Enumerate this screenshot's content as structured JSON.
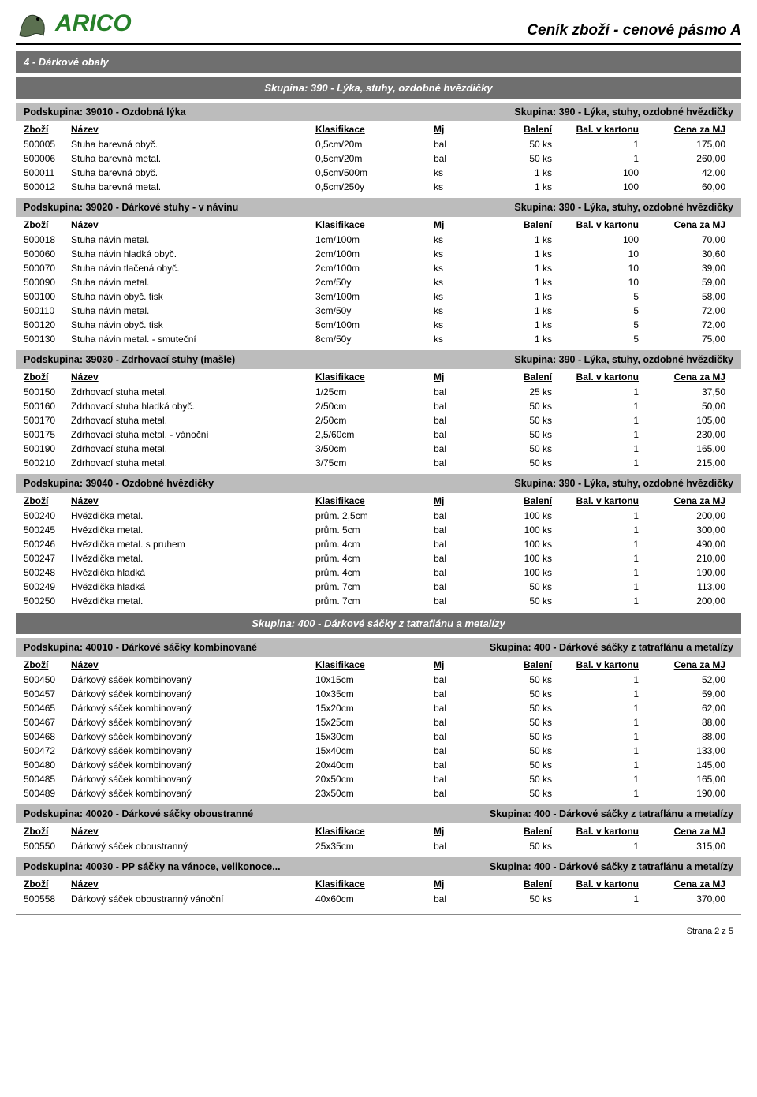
{
  "doc_title": "Ceník zboží - cenové pásmo  A",
  "logo": {
    "part1": "AR",
    "part2": "ICO"
  },
  "category_band_text": "4  -  Dárkové obaly",
  "group_band_390": "Skupina:   390  -  Lýka, stuhy, ozdobné hvězdičky",
  "group_band_400": "Skupina:   400  -  Dárkové sáčky z tatraflánu a metalízy",
  "skupina_suffix_390": "Skupina:   390  -  Lýka, stuhy, ozdobné hvězdičky",
  "skupina_suffix_400": "Skupina:   400  -  Dárkové sáčky z tatraflánu a metalízy",
  "col": {
    "zbozi": "Zboží",
    "nazev": "Název",
    "klas": "Klasifikace",
    "mj": "Mj",
    "bal": "Balení",
    "kart": "Bal. v kartonu",
    "cena": "Cena za MJ"
  },
  "sections": [
    {
      "podskupina": "Podskupina:   39010  -  Ozdobná lýka",
      "skupina_right": "Skupina:   390  -  Lýka, stuhy, ozdobné hvězdičky",
      "rows": [
        {
          "code": "500005",
          "name": "Stuha barevná obyč.",
          "klas": "0,5cm/20m",
          "mj": "bal",
          "bal": "50 ks",
          "kart": "1",
          "cena": "175,00"
        },
        {
          "code": "500006",
          "name": "Stuha barevná metal.",
          "klas": "0,5cm/20m",
          "mj": "bal",
          "bal": "50 ks",
          "kart": "1",
          "cena": "260,00"
        },
        {
          "code": "500011",
          "name": "Stuha barevná obyč.",
          "klas": "0,5cm/500m",
          "mj": "ks",
          "bal": "1 ks",
          "kart": "100",
          "cena": "42,00"
        },
        {
          "code": "500012",
          "name": "Stuha barevná metal.",
          "klas": "0,5cm/250y",
          "mj": "ks",
          "bal": "1 ks",
          "kart": "100",
          "cena": "60,00"
        }
      ]
    },
    {
      "podskupina": "Podskupina:   39020  -  Dárkové stuhy - v návinu",
      "skupina_right": "Skupina:   390  -  Lýka, stuhy, ozdobné hvězdičky",
      "rows": [
        {
          "code": "500018",
          "name": "Stuha návin metal.",
          "klas": "1cm/100m",
          "mj": "ks",
          "bal": "1 ks",
          "kart": "100",
          "cena": "70,00"
        },
        {
          "code": "500060",
          "name": "Stuha návin hladká obyč.",
          "klas": "2cm/100m",
          "mj": "ks",
          "bal": "1 ks",
          "kart": "10",
          "cena": "30,60"
        },
        {
          "code": "500070",
          "name": "Stuha návin tlačená obyč.",
          "klas": "2cm/100m",
          "mj": "ks",
          "bal": "1 ks",
          "kart": "10",
          "cena": "39,00"
        },
        {
          "code": "500090",
          "name": "Stuha návin metal.",
          "klas": "2cm/50y",
          "mj": "ks",
          "bal": "1 ks",
          "kart": "10",
          "cena": "59,00"
        },
        {
          "code": "500100",
          "name": "Stuha návin obyč. tisk",
          "klas": "3cm/100m",
          "mj": "ks",
          "bal": "1 ks",
          "kart": "5",
          "cena": "58,00"
        },
        {
          "code": "500110",
          "name": "Stuha návin metal.",
          "klas": "3cm/50y",
          "mj": "ks",
          "bal": "1 ks",
          "kart": "5",
          "cena": "72,00"
        },
        {
          "code": "500120",
          "name": "Stuha návin obyč. tisk",
          "klas": "5cm/100m",
          "mj": "ks",
          "bal": "1 ks",
          "kart": "5",
          "cena": "72,00"
        },
        {
          "code": "500130",
          "name": "Stuha návin metal. - smuteční",
          "klas": "8cm/50y",
          "mj": "ks",
          "bal": "1 ks",
          "kart": "5",
          "cena": "75,00"
        }
      ]
    },
    {
      "podskupina": "Podskupina:   39030  -  Zdrhovací stuhy (mašle)",
      "skupina_right": "Skupina:   390  -  Lýka, stuhy, ozdobné hvězdičky",
      "rows": [
        {
          "code": "500150",
          "name": "Zdrhovací stuha metal.",
          "klas": "1/25cm",
          "mj": "bal",
          "bal": "25 ks",
          "kart": "1",
          "cena": "37,50"
        },
        {
          "code": "500160",
          "name": "Zdrhovací stuha hladká obyč.",
          "klas": "2/50cm",
          "mj": "bal",
          "bal": "50 ks",
          "kart": "1",
          "cena": "50,00"
        },
        {
          "code": "500170",
          "name": "Zdrhovací stuha metal.",
          "klas": "2/50cm",
          "mj": "bal",
          "bal": "50 ks",
          "kart": "1",
          "cena": "105,00"
        },
        {
          "code": "500175",
          "name": "Zdrhovací stuha metal. - vánoční",
          "klas": "2,5/60cm",
          "mj": "bal",
          "bal": "50 ks",
          "kart": "1",
          "cena": "230,00"
        },
        {
          "code": "500190",
          "name": "Zdrhovací stuha metal.",
          "klas": "3/50cm",
          "mj": "bal",
          "bal": "50 ks",
          "kart": "1",
          "cena": "165,00"
        },
        {
          "code": "500210",
          "name": "Zdrhovací stuha metal.",
          "klas": "3/75cm",
          "mj": "bal",
          "bal": "50 ks",
          "kart": "1",
          "cena": "215,00"
        }
      ]
    },
    {
      "podskupina": "Podskupina:   39040  -  Ozdobné hvězdičky",
      "skupina_right": "Skupina:   390  -  Lýka, stuhy, ozdobné hvězdičky",
      "rows": [
        {
          "code": "500240",
          "name": "Hvězdička metal.",
          "klas": "prům. 2,5cm",
          "mj": "bal",
          "bal": "100 ks",
          "kart": "1",
          "cena": "200,00"
        },
        {
          "code": "500245",
          "name": "Hvězdička metal.",
          "klas": "prům. 5cm",
          "mj": "bal",
          "bal": "100 ks",
          "kart": "1",
          "cena": "300,00"
        },
        {
          "code": "500246",
          "name": "Hvězdička metal. s pruhem",
          "klas": "prům. 4cm",
          "mj": "bal",
          "bal": "100 ks",
          "kart": "1",
          "cena": "490,00"
        },
        {
          "code": "500247",
          "name": "Hvězdička metal.",
          "klas": "prům. 4cm",
          "mj": "bal",
          "bal": "100 ks",
          "kart": "1",
          "cena": "210,00"
        },
        {
          "code": "500248",
          "name": "Hvězdička hladká",
          "klas": "prům. 4cm",
          "mj": "bal",
          "bal": "100 ks",
          "kart": "1",
          "cena": "190,00"
        },
        {
          "code": "500249",
          "name": "Hvězdička hladká",
          "klas": "prům. 7cm",
          "mj": "bal",
          "bal": "50 ks",
          "kart": "1",
          "cena": "113,00"
        },
        {
          "code": "500250",
          "name": "Hvězdička metal.",
          "klas": "prům. 7cm",
          "mj": "bal",
          "bal": "50 ks",
          "kart": "1",
          "cena": "200,00"
        }
      ]
    }
  ],
  "sections400": [
    {
      "podskupina": "Podskupina:   40010  -  Dárkové sáčky kombinované",
      "skupina_right": "Skupina:   400  -  Dárkové sáčky z tatraflánu a metalízy",
      "rows": [
        {
          "code": "500450",
          "name": "Dárkový sáček kombinovaný",
          "klas": "10x15cm",
          "mj": "bal",
          "bal": "50 ks",
          "kart": "1",
          "cena": "52,00"
        },
        {
          "code": "500457",
          "name": "Dárkový sáček kombinovaný",
          "klas": "10x35cm",
          "mj": "bal",
          "bal": "50 ks",
          "kart": "1",
          "cena": "59,00"
        },
        {
          "code": "500465",
          "name": "Dárkový sáček kombinovaný",
          "klas": "15x20cm",
          "mj": "bal",
          "bal": "50 ks",
          "kart": "1",
          "cena": "62,00"
        },
        {
          "code": "500467",
          "name": "Dárkový sáček kombinovaný",
          "klas": "15x25cm",
          "mj": "bal",
          "bal": "50 ks",
          "kart": "1",
          "cena": "88,00"
        },
        {
          "code": "500468",
          "name": "Dárkový sáček kombinovaný",
          "klas": "15x30cm",
          "mj": "bal",
          "bal": "50 ks",
          "kart": "1",
          "cena": "88,00"
        },
        {
          "code": "500472",
          "name": "Dárkový sáček kombinovaný",
          "klas": "15x40cm",
          "mj": "bal",
          "bal": "50 ks",
          "kart": "1",
          "cena": "133,00"
        },
        {
          "code": "500480",
          "name": "Dárkový sáček kombinovaný",
          "klas": "20x40cm",
          "mj": "bal",
          "bal": "50 ks",
          "kart": "1",
          "cena": "145,00"
        },
        {
          "code": "500485",
          "name": "Dárkový sáček kombinovaný",
          "klas": "20x50cm",
          "mj": "bal",
          "bal": "50 ks",
          "kart": "1",
          "cena": "165,00"
        },
        {
          "code": "500489",
          "name": "Dárkový sáček kombinovaný",
          "klas": "23x50cm",
          "mj": "bal",
          "bal": "50 ks",
          "kart": "1",
          "cena": "190,00"
        }
      ]
    },
    {
      "podskupina": "Podskupina:   40020  -  Dárkové sáčky oboustranné",
      "skupina_right": "Skupina:   400  -  Dárkové sáčky z tatraflánu a metalízy",
      "rows": [
        {
          "code": "500550",
          "name": "Dárkový sáček oboustranný",
          "klas": "25x35cm",
          "mj": "bal",
          "bal": "50 ks",
          "kart": "1",
          "cena": "315,00"
        }
      ]
    },
    {
      "podskupina": "Podskupina:   40030  -  PP sáčky na vánoce, velikonoce...",
      "skupina_right": "Skupina:   400  -  Dárkové sáčky z tatraflánu a metalízy",
      "rows": [
        {
          "code": "500558",
          "name": "Dárkový sáček oboustranný vánoční",
          "klas": "40x60cm",
          "mj": "bal",
          "bal": "50 ks",
          "kart": "1",
          "cena": "370,00"
        }
      ]
    }
  ],
  "footer": "Strana 2 z 5"
}
